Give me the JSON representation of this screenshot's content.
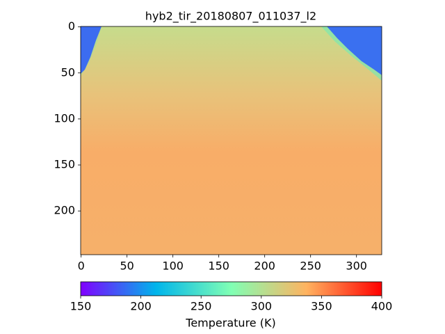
{
  "chart_data": {
    "type": "image",
    "title": "hyb2_tir_20180807_011037_l2",
    "xlim": [
      -0.5,
      327.5
    ],
    "ylim": [
      247.5,
      -0.5
    ],
    "xticks": [
      0,
      50,
      100,
      150,
      200,
      250,
      300
    ],
    "yticks": [
      0,
      50,
      100,
      150,
      200
    ],
    "colormap": "rainbow",
    "colorbar": {
      "label": "Temperature (K)",
      "lim": [
        150,
        400
      ],
      "ticks": [
        150,
        200,
        250,
        300,
        350,
        400
      ]
    }
  }
}
